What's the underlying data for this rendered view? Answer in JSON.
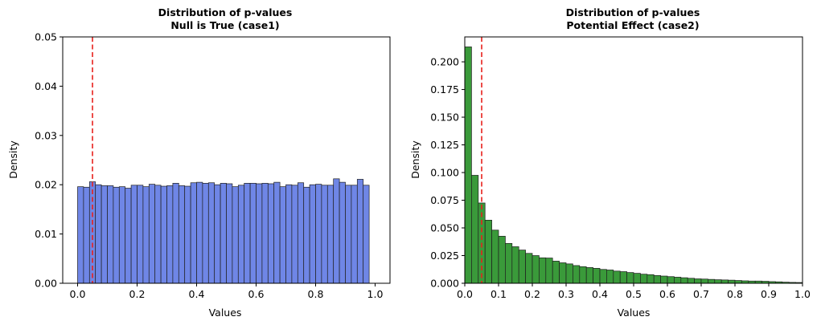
{
  "chart_data": [
    {
      "type": "bar",
      "title_line1": "Distribution of p-values",
      "title_line2": "Null is True (case1)",
      "xlabel": "Values",
      "ylabel": "Density",
      "xlim": [
        -0.05,
        1.05
      ],
      "ylim": [
        0,
        0.05
      ],
      "xticks": [
        "0.0",
        "0.2",
        "0.4",
        "0.6",
        "0.8",
        "1.0"
      ],
      "yticks": [
        "0.00",
        "0.01",
        "0.02",
        "0.03",
        "0.04",
        "0.05"
      ],
      "bin_start": 0,
      "bin_width": 0.02,
      "values": [
        0.0196,
        0.0195,
        0.0206,
        0.02,
        0.0198,
        0.0198,
        0.0195,
        0.0196,
        0.0193,
        0.0199,
        0.0199,
        0.0196,
        0.0201,
        0.0199,
        0.0197,
        0.0198,
        0.0203,
        0.0198,
        0.0197,
        0.0204,
        0.0205,
        0.0203,
        0.0204,
        0.02,
        0.0203,
        0.0202,
        0.0196,
        0.0199,
        0.0203,
        0.0203,
        0.0202,
        0.0203,
        0.0202,
        0.0205,
        0.0196,
        0.02,
        0.0199,
        0.0204,
        0.0195,
        0.02,
        0.0201,
        0.0199,
        0.0199,
        0.0212,
        0.0205,
        0.0199,
        0.0199,
        0.0211,
        0.0199
      ],
      "bar_color": "#6f86e6",
      "edge_color": "#1f1f1f",
      "vline": 0.05,
      "vline_color": "#e8201c"
    },
    {
      "type": "bar",
      "title_line1": "Distribution of p-values",
      "title_line2": "Potential Effect (case2)",
      "xlabel": "Values",
      "ylabel": "Density",
      "xlim": [
        0,
        1.0
      ],
      "ylim": [
        0,
        0.2225
      ],
      "xticks": [
        "0.0",
        "0.1",
        "0.2",
        "0.3",
        "0.4",
        "0.5",
        "0.6",
        "0.7",
        "0.8",
        "0.9",
        "1.0"
      ],
      "yticks": [
        "0.000",
        "0.025",
        "0.050",
        "0.075",
        "0.100",
        "0.125",
        "0.150",
        "0.175",
        "0.200"
      ],
      "bin_start": 0,
      "bin_width": 0.02,
      "values": [
        0.2135,
        0.0975,
        0.0725,
        0.057,
        0.048,
        0.0425,
        0.036,
        0.033,
        0.03,
        0.027,
        0.025,
        0.023,
        0.0228,
        0.02,
        0.0185,
        0.0175,
        0.016,
        0.015,
        0.0142,
        0.0135,
        0.0125,
        0.012,
        0.011,
        0.0105,
        0.0097,
        0.009,
        0.0082,
        0.0078,
        0.007,
        0.0065,
        0.006,
        0.0055,
        0.005,
        0.0045,
        0.004,
        0.0038,
        0.0035,
        0.0032,
        0.003,
        0.0028,
        0.0025,
        0.0022,
        0.002,
        0.002,
        0.0018,
        0.0015,
        0.0013,
        0.001,
        0.0008,
        0.0007
      ],
      "bar_color": "#3a9a3a",
      "edge_color": "#1f1f1f",
      "vline": 0.05,
      "vline_color": "#e8201c"
    }
  ]
}
